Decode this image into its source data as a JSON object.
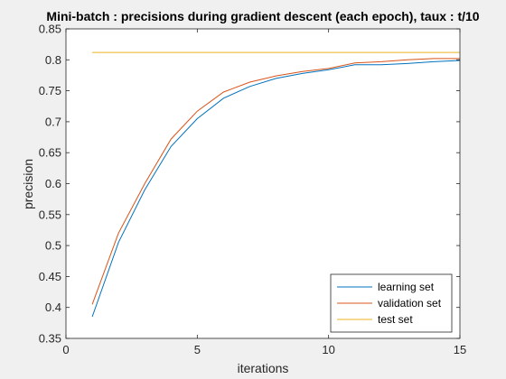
{
  "chart_data": {
    "type": "line",
    "title": "Mini-batch : precisions during gradient descent (each epoch), taux : t/10",
    "xlabel": "iterations",
    "ylabel": "precision",
    "xlim": [
      0,
      15
    ],
    "ylim": [
      0.35,
      0.85
    ],
    "xticks": [
      0,
      5,
      10,
      15
    ],
    "xtick_labels": [
      "0",
      "5",
      "10",
      "15"
    ],
    "yticks": [
      0.35,
      0.4,
      0.45,
      0.5,
      0.55,
      0.6,
      0.65,
      0.7,
      0.75,
      0.8,
      0.85
    ],
    "ytick_labels": [
      "0.35",
      "0.4",
      "0.45",
      "0.5",
      "0.55",
      "0.6",
      "0.65",
      "0.7",
      "0.75",
      "0.8",
      "0.85"
    ],
    "grid": false,
    "legend_position": "bottom-right",
    "x": [
      1,
      2,
      3,
      4,
      5,
      6,
      7,
      8,
      9,
      10,
      11,
      12,
      13,
      14,
      15
    ],
    "series": [
      {
        "name": "learning set",
        "color": "#0072bd",
        "values": [
          0.385,
          0.505,
          0.59,
          0.66,
          0.705,
          0.738,
          0.757,
          0.77,
          0.778,
          0.784,
          0.792,
          0.792,
          0.794,
          0.797,
          0.799
        ]
      },
      {
        "name": "validation set",
        "color": "#d95319",
        "values": [
          0.405,
          0.52,
          0.6,
          0.672,
          0.717,
          0.748,
          0.764,
          0.774,
          0.781,
          0.786,
          0.795,
          0.797,
          0.8,
          0.802,
          0.802
        ]
      },
      {
        "name": "test set",
        "color": "#edb120",
        "values": [
          0.812,
          0.812,
          0.812,
          0.812,
          0.812,
          0.812,
          0.812,
          0.812,
          0.812,
          0.812,
          0.812,
          0.812,
          0.812,
          0.812,
          0.812
        ]
      }
    ]
  }
}
